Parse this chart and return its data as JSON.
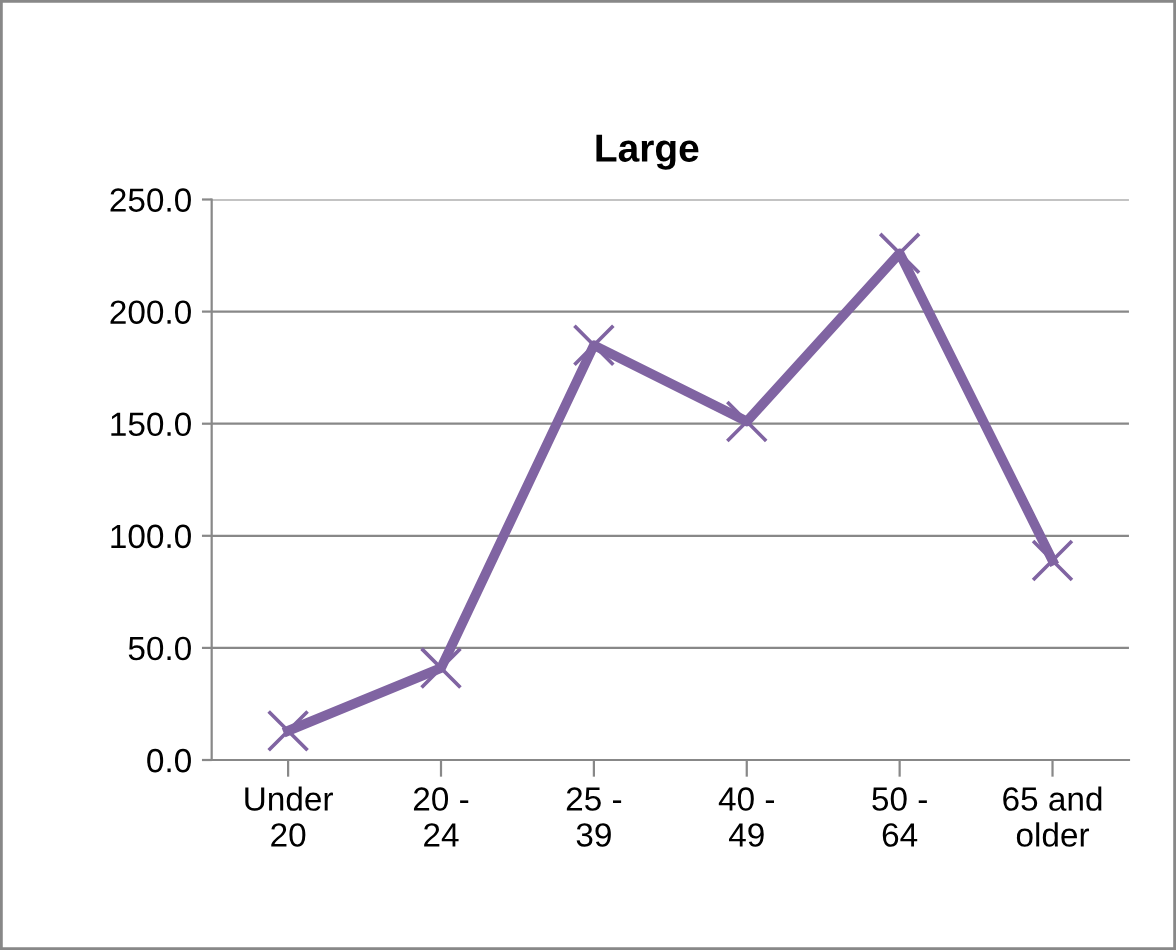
{
  "chart_data": {
    "type": "line",
    "title": "Large",
    "categories": [
      "Under\n20",
      "20 -\n24",
      "25 -\n39",
      "40 -\n49",
      "50 -\n64",
      "65 and\nolder"
    ],
    "series": [
      {
        "color": "#8064a2",
        "values": [
          13,
          41,
          185,
          151,
          226,
          89
        ]
      }
    ],
    "ylim": [
      0,
      250
    ],
    "yticks": [
      {
        "value": 0,
        "label": "0.0"
      },
      {
        "value": 50,
        "label": "50.0"
      },
      {
        "value": 100,
        "label": "100.0"
      },
      {
        "value": 150,
        "label": "150.0"
      },
      {
        "value": 200,
        "label": "200.0"
      },
      {
        "value": 250,
        "label": "250.0"
      }
    ],
    "grid": "y",
    "legend": false,
    "marker": "cross",
    "line_style": "solid"
  }
}
